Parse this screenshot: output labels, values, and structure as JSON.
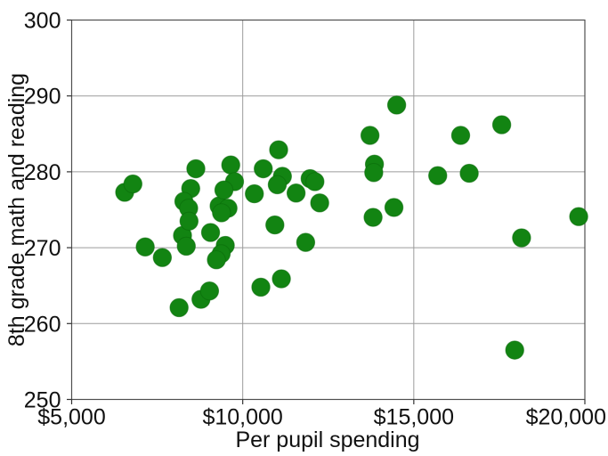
{
  "chart_data": {
    "type": "scatter",
    "title": "",
    "xlabel": "Per pupil spending",
    "ylabel": "8th grade math and reading",
    "xlim": [
      5000,
      20000
    ],
    "ylim": [
      250,
      300
    ],
    "x_ticks": [
      5000,
      10000,
      15000,
      20000
    ],
    "x_tick_labels": [
      "$5,000",
      "$10,000",
      "$15,000",
      "$20,000"
    ],
    "y_ticks": [
      250,
      260,
      270,
      280,
      290,
      300
    ],
    "y_tick_labels": [
      "250",
      "260",
      "270",
      "280",
      "290",
      "300"
    ],
    "grid": true,
    "legend": "none",
    "marker": {
      "shape": "circle",
      "color": "#128412",
      "edge_color": "#0a6b0a",
      "radius_px": 10.2
    },
    "colors": {
      "background": "#ffffff",
      "grid": "#9b9b9b",
      "spine": "#4f4f4f",
      "tick": "#333333",
      "text": "#111111"
    },
    "points": [
      [
        6550,
        277.3
      ],
      [
        6790,
        278.4
      ],
      [
        7150,
        270.1
      ],
      [
        7650,
        268.7
      ],
      [
        8240,
        271.6
      ],
      [
        8350,
        270.2
      ],
      [
        8140,
        262.1
      ],
      [
        8780,
        263.2
      ],
      [
        9030,
        264.3
      ],
      [
        8630,
        280.4
      ],
      [
        8480,
        277.8
      ],
      [
        8280,
        276.1
      ],
      [
        8420,
        275.2
      ],
      [
        8430,
        273.5
      ],
      [
        9310,
        275.5
      ],
      [
        9570,
        275.2
      ],
      [
        9380,
        274.6
      ],
      [
        9650,
        280.9
      ],
      [
        9760,
        278.7
      ],
      [
        9450,
        277.6
      ],
      [
        9060,
        272.0
      ],
      [
        9490,
        270.3
      ],
      [
        9370,
        269.2
      ],
      [
        9230,
        268.4
      ],
      [
        10340,
        277.1
      ],
      [
        10600,
        280.4
      ],
      [
        11050,
        282.9
      ],
      [
        11160,
        279.4
      ],
      [
        11010,
        278.3
      ],
      [
        11970,
        279.1
      ],
      [
        12110,
        278.7
      ],
      [
        11560,
        277.2
      ],
      [
        12250,
        275.9
      ],
      [
        10940,
        273.0
      ],
      [
        11840,
        270.7
      ],
      [
        10530,
        264.8
      ],
      [
        11130,
        265.9
      ],
      [
        13720,
        284.8
      ],
      [
        13850,
        281.0
      ],
      [
        13830,
        279.9
      ],
      [
        13810,
        274.0
      ],
      [
        14420,
        275.3
      ],
      [
        14500,
        288.8
      ],
      [
        15700,
        279.5
      ],
      [
        16620,
        279.8
      ],
      [
        16370,
        284.8
      ],
      [
        17570,
        286.2
      ],
      [
        18150,
        271.3
      ],
      [
        17950,
        256.5
      ],
      [
        19820,
        274.1
      ]
    ]
  }
}
